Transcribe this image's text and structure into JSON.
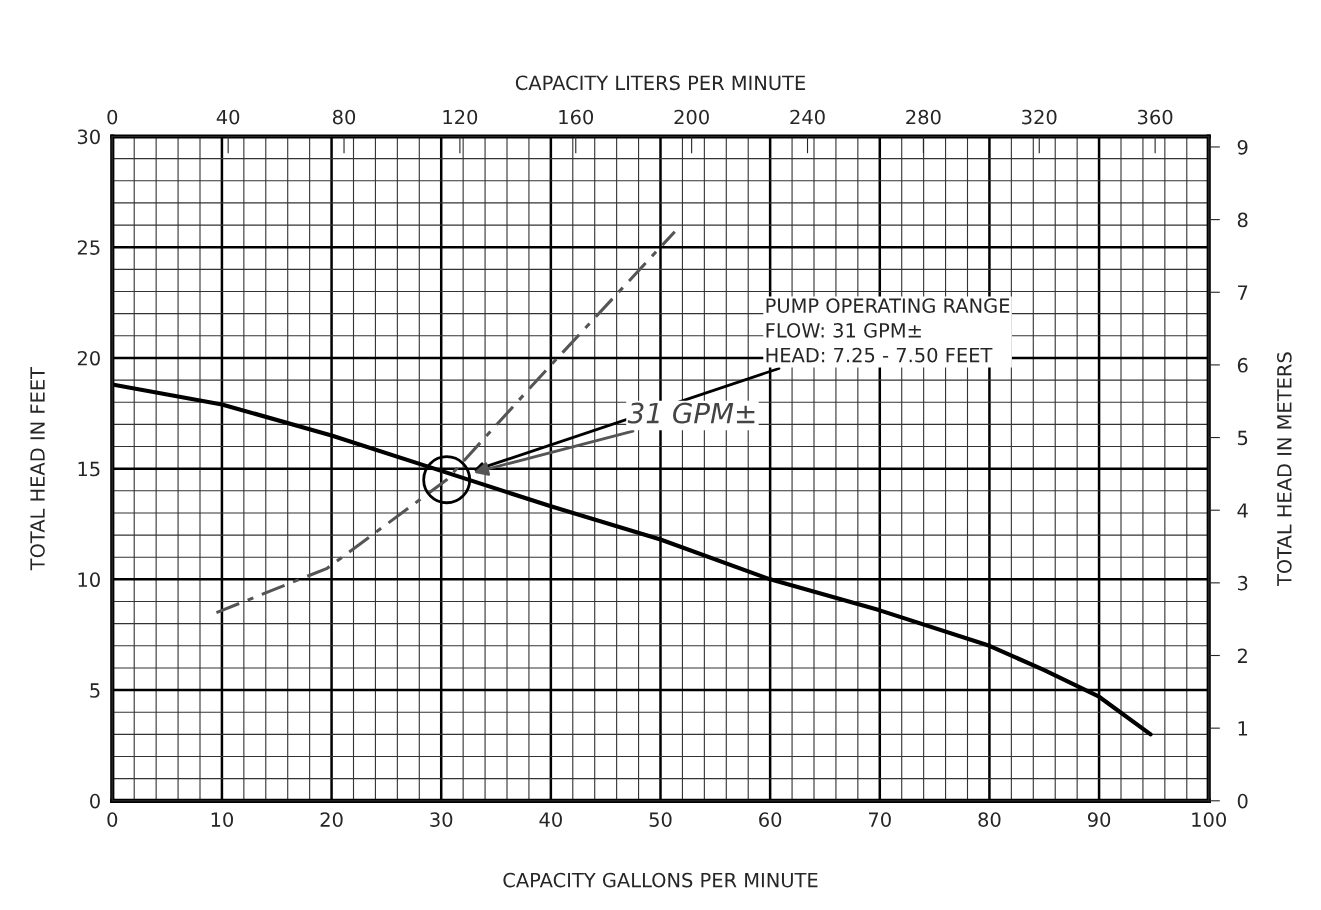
{
  "chart_data": {
    "type": "line",
    "xlabel": "CAPACITY GALLONS PER MINUTE",
    "ylabel": "TOTAL HEAD IN FEET",
    "y2label": "TOTAL HEAD IN METERS",
    "x2label": "CAPACITY LITERS PER MINUTE",
    "xlim": [
      0,
      100
    ],
    "xticks": [
      0,
      10,
      20,
      30,
      40,
      50,
      60,
      70,
      80,
      90,
      100
    ],
    "ylim": [
      0,
      30
    ],
    "yticks": [
      0,
      5,
      10,
      15,
      20,
      25,
      30
    ],
    "x2lim": [
      0,
      378.5
    ],
    "x2ticks": [
      0,
      40,
      80,
      120,
      160,
      200,
      240,
      280,
      320,
      360
    ],
    "y2lim": [
      0,
      9.144
    ],
    "y2ticks": [
      0,
      1,
      2,
      3,
      4,
      5,
      6,
      7,
      8,
      9
    ],
    "grid": true,
    "legend": false,
    "series": [
      {
        "type": "line",
        "color": "#000000",
        "line_style": "solid",
        "marker": "none",
        "x": [
          0,
          10,
          20,
          30,
          40,
          50,
          60,
          70,
          80,
          85,
          90,
          94.7
        ],
        "values": [
          18.8,
          17.9,
          16.5,
          14.9,
          13.3,
          11.8,
          10.0,
          8.6,
          7.0,
          5.9,
          4.7,
          3.0
        ]
      },
      {
        "type": "line",
        "color": "#555555",
        "line_style": "dashed",
        "marker": "none",
        "x": [
          9.5,
          19.6,
          30.5,
          39.3,
          51.3
        ],
        "values": [
          8.5,
          10.5,
          14.5,
          19.3,
          25.7
        ]
      },
      {
        "type": "scatter",
        "color": "#000000",
        "marker": "circle",
        "x": [
          30.5
        ],
        "values": [
          14.5
        ]
      }
    ],
    "annotations": [
      "PUMP OPERATING RANGE\nFLOW: 31 GPM±\nHEAD: 7.25 - 7.50 FEET",
      "31 GPM±"
    ]
  }
}
